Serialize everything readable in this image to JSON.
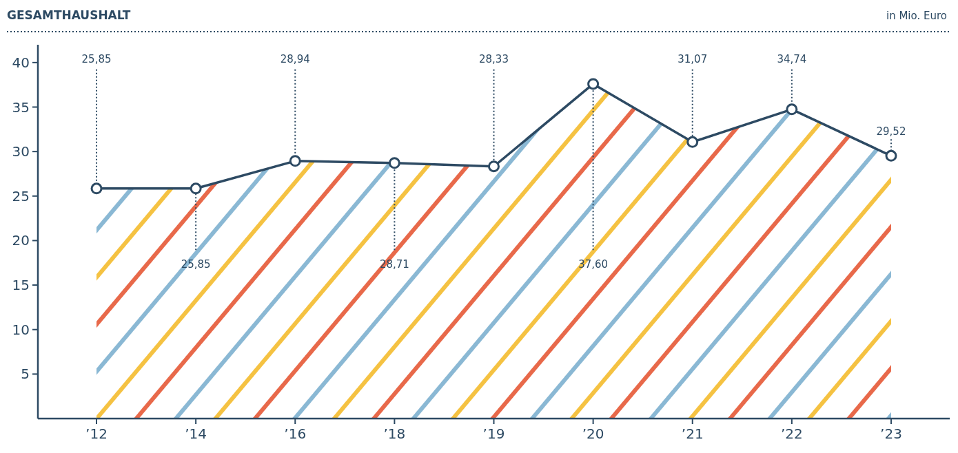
{
  "chart_data": {
    "type": "area",
    "title": "GESAMTHAUSHALT",
    "subtitle": "in Mio. Euro",
    "categories": [
      "’12",
      "’14",
      "’16",
      "’18",
      "’19",
      "’20",
      "’21",
      "’22",
      "’23"
    ],
    "series": [
      {
        "color": "#2d4a63",
        "values": [
          25.85,
          25.85,
          28.94,
          28.71,
          28.33,
          37.6,
          31.07,
          34.74,
          29.52
        ],
        "value_labels": [
          "25,85",
          "25,85",
          "28,94",
          "28,71",
          "28,33",
          "37,60",
          "31,07",
          "34,74",
          "29,52"
        ]
      }
    ],
    "ylim": [
      0,
      42
    ],
    "yticks": [
      5,
      10,
      15,
      20,
      25,
      30,
      35,
      40
    ],
    "marker": "circle"
  }
}
